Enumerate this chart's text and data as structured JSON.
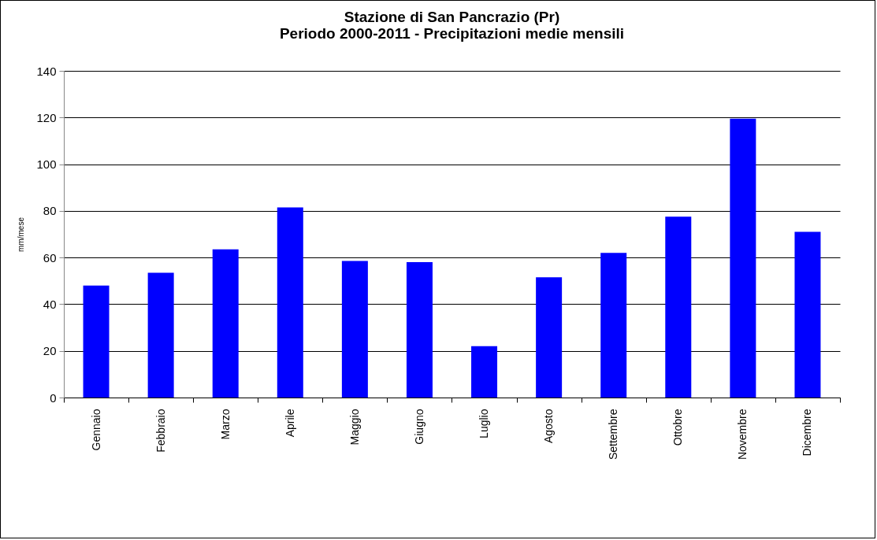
{
  "chart_data": {
    "type": "bar",
    "title": [
      "Stazione di San Pancrazio (Pr)",
      "Periodo 2000-2011 - Precipitazioni medie mensili"
    ],
    "ylabel": "mm/mese",
    "categories": [
      "Gennaio",
      "Febbraio",
      "Marzo",
      "Aprile",
      "Maggio",
      "Giugno",
      "Luglio",
      "Agosto",
      "Settembre",
      "Ottobre",
      "Novembre",
      "Dicembre"
    ],
    "values": [
      48,
      53.5,
      63.5,
      81.5,
      58.5,
      58,
      22,
      51.5,
      62,
      77.5,
      119.5,
      71
    ],
    "color": "#0000ff",
    "ylim": [
      0,
      140
    ],
    "yticks": [
      0,
      20,
      40,
      60,
      80,
      100,
      120,
      140
    ],
    "grid": "y"
  }
}
